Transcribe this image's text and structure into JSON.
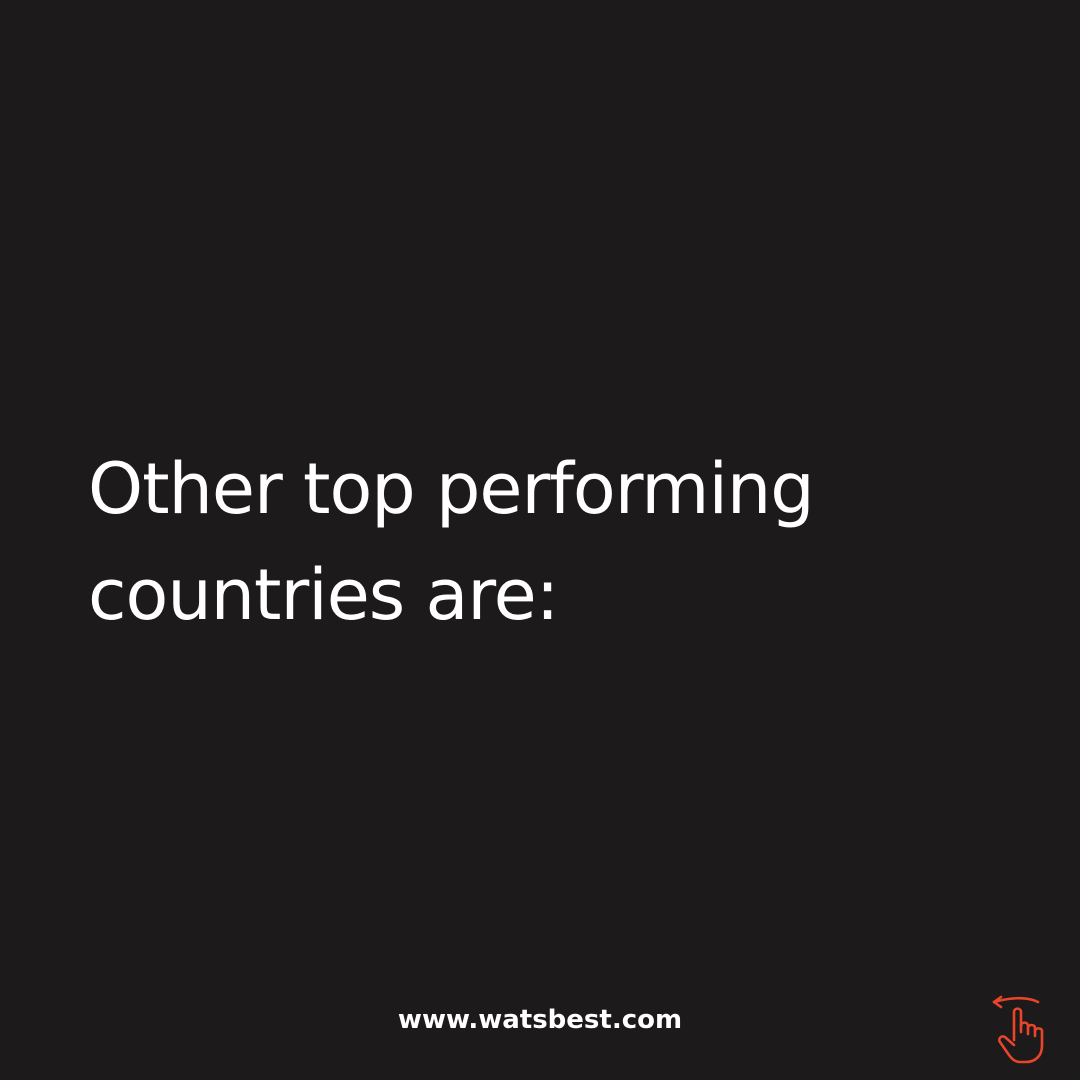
{
  "headline": {
    "line1": "Other top performing",
    "line2": "countries are:"
  },
  "footer": {
    "url": "www.watsbest.com"
  },
  "icons": {
    "swipe": "swipe-left-hand-icon"
  },
  "colors": {
    "background": "#1c1a1a",
    "text": "#ffffff",
    "accent": "#e8452b"
  }
}
